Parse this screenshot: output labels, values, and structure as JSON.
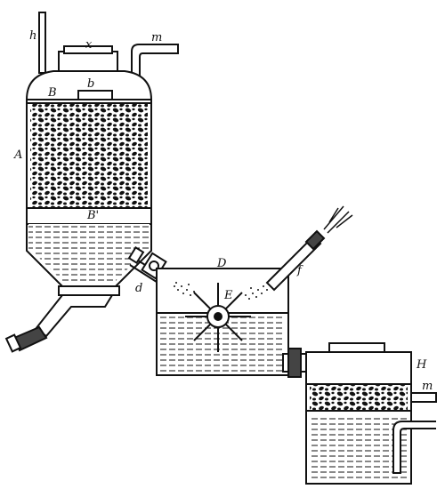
{
  "figure": {
    "colors": {
      "ink": "#111111",
      "paper": "#ffffff",
      "fill_medium": "#444444"
    },
    "labels": {
      "vessel_a": "A",
      "plate_b_top": "B",
      "plate_b_bottom": "B'",
      "lid_b": "b",
      "vent_h": "h",
      "cover_x": "x",
      "outlet_m_top": "m",
      "valve_d": "d",
      "tank_d": "D",
      "wheel_e": "E",
      "inlet_f": "f",
      "tank_h": "H",
      "outlet_m_right": "m"
    }
  }
}
